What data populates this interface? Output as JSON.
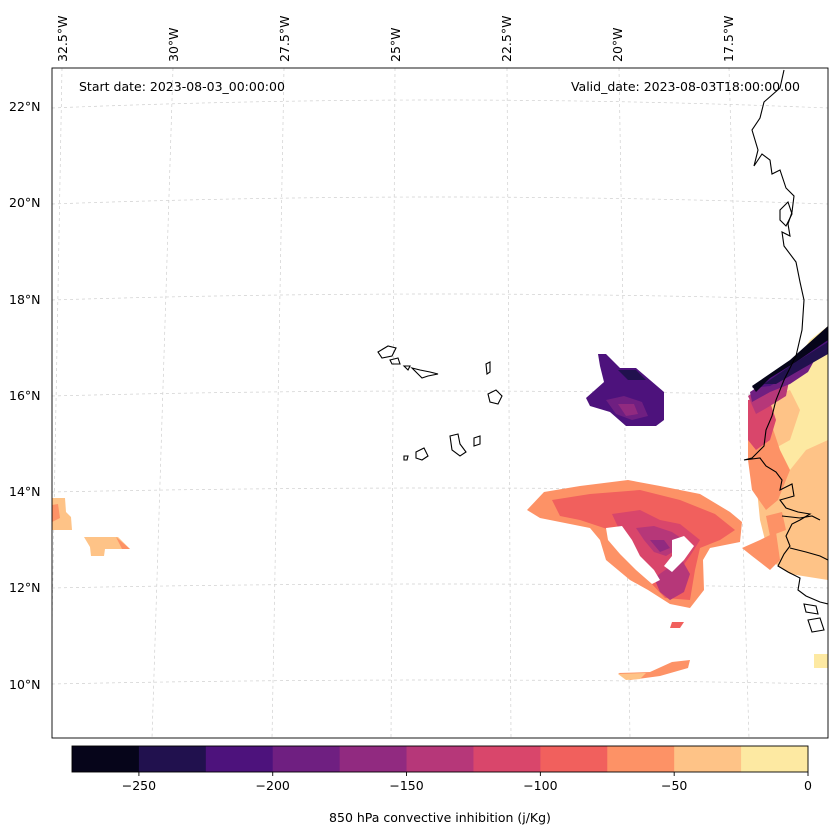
{
  "map": {
    "start_label": "Start date: 2023-08-03_00:00:00",
    "valid_label": "Valid_date: 2023-08-03T18:00:00.00",
    "lon_labels": [
      "32.5°W",
      "30°W",
      "27.5°W",
      "25°W",
      "22.5°W",
      "20°W",
      "17.5°W"
    ],
    "lat_labels": [
      "22°N",
      "20°N",
      "18°N",
      "16°N",
      "14°N",
      "12°N",
      "10°N"
    ],
    "gridlines": true,
    "coastline_color": "#000000"
  },
  "colorbar": {
    "label": "850 hPa convective inhibition (j/Kg)",
    "tick_labels": [
      "−250",
      "−200",
      "−150",
      "−100",
      "−50",
      "0"
    ],
    "levels": [
      -275,
      -250,
      -225,
      -200,
      -175,
      -150,
      -125,
      -100,
      -75,
      -50,
      -25,
      0
    ],
    "colors": [
      "#06051a",
      "#21114e",
      "#4d127c",
      "#6f1f81",
      "#912a80",
      "#b63779",
      "#d9466b",
      "#f1605d",
      "#fd9266",
      "#fec387",
      "#fde9a2"
    ]
  }
}
